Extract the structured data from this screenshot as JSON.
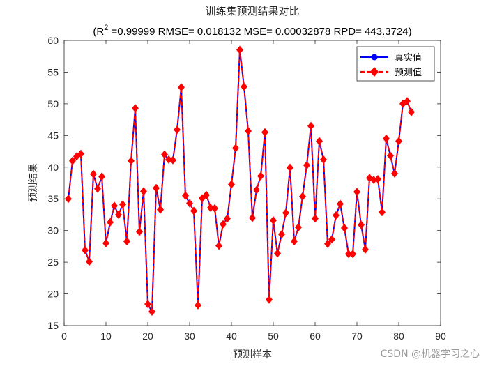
{
  "chart_data": {
    "type": "line",
    "title": "训练集预测结果对比",
    "subtitle": {
      "prefix": "(R",
      "sup": "2",
      "rest": " =0.99999 RMSE= 0.018132 MSE= 0.00032878 RPD= 443.3724)"
    },
    "xlabel": "预测样本",
    "ylabel": "预测结果",
    "xlim": [
      0,
      90
    ],
    "ylim": [
      15,
      60
    ],
    "xticks": [
      0,
      10,
      20,
      30,
      40,
      50,
      60,
      70,
      80,
      90
    ],
    "yticks": [
      15,
      20,
      25,
      30,
      35,
      40,
      45,
      50,
      55,
      60
    ],
    "grid": false,
    "legend_position": "top-right",
    "x": [
      1,
      2,
      3,
      4,
      5,
      6,
      7,
      8,
      9,
      10,
      11,
      12,
      13,
      14,
      15,
      16,
      17,
      18,
      19,
      20,
      21,
      22,
      23,
      24,
      25,
      26,
      27,
      28,
      29,
      30,
      31,
      32,
      33,
      34,
      35,
      36,
      37,
      38,
      39,
      40,
      41,
      42,
      43,
      44,
      45,
      46,
      47,
      48,
      49,
      50,
      51,
      52,
      53,
      54,
      55,
      56,
      57,
      58,
      59,
      60,
      61,
      62,
      63,
      64,
      65,
      66,
      67,
      68,
      69,
      70,
      71,
      72,
      73,
      74,
      75,
      76,
      77,
      78,
      79,
      80,
      81,
      82,
      83
    ],
    "series": [
      {
        "name": "真实值",
        "color": "#0000ff",
        "marker": "circle",
        "values": [
          35.0,
          41.0,
          41.7,
          42.1,
          26.9,
          25.1,
          38.9,
          36.6,
          38.5,
          28.0,
          31.3,
          33.9,
          32.5,
          34.1,
          28.3,
          41.0,
          49.3,
          29.8,
          36.2,
          18.4,
          17.2,
          36.7,
          33.3,
          42.0,
          41.2,
          41.1,
          45.9,
          52.6,
          35.5,
          34.3,
          33.1,
          18.2,
          35.1,
          35.6,
          33.6,
          33.5,
          27.6,
          31.0,
          31.9,
          37.3,
          43.0,
          58.5,
          52.7,
          45.7,
          32.0,
          36.4,
          38.6,
          45.5,
          19.1,
          31.6,
          26.4,
          29.4,
          32.8,
          39.9,
          28.3,
          30.5,
          35.4,
          40.3,
          46.5,
          31.9,
          44.1,
          41.2,
          27.9,
          28.6,
          32.4,
          34.2,
          30.4,
          26.3,
          26.3,
          36.1,
          30.9,
          27.0,
          38.3,
          38.0,
          38.1,
          32.9,
          44.5,
          41.8,
          39.0,
          44.1,
          50.0,
          50.4,
          48.7
        ]
      },
      {
        "name": "预测值",
        "color": "#ff0000",
        "marker": "diamond",
        "values": [
          35.0,
          41.0,
          41.7,
          42.1,
          26.9,
          25.1,
          38.9,
          36.6,
          38.5,
          28.0,
          31.3,
          33.9,
          32.5,
          34.1,
          28.3,
          41.0,
          49.3,
          29.8,
          36.2,
          18.4,
          17.2,
          36.7,
          33.3,
          42.0,
          41.2,
          41.1,
          45.9,
          52.6,
          35.5,
          34.3,
          33.1,
          18.2,
          35.1,
          35.6,
          33.6,
          33.5,
          27.6,
          31.0,
          31.9,
          37.3,
          43.0,
          58.5,
          52.7,
          45.7,
          32.0,
          36.4,
          38.6,
          45.5,
          19.1,
          31.6,
          26.4,
          29.4,
          32.8,
          39.9,
          28.3,
          30.5,
          35.4,
          40.3,
          46.5,
          31.9,
          44.1,
          41.2,
          27.9,
          28.6,
          32.4,
          34.2,
          30.4,
          26.3,
          26.3,
          36.1,
          30.9,
          27.0,
          38.3,
          38.0,
          38.1,
          32.9,
          44.5,
          41.8,
          39.0,
          44.1,
          50.0,
          50.4,
          48.7
        ]
      }
    ]
  },
  "watermark": "CSDN @机器学习之心"
}
